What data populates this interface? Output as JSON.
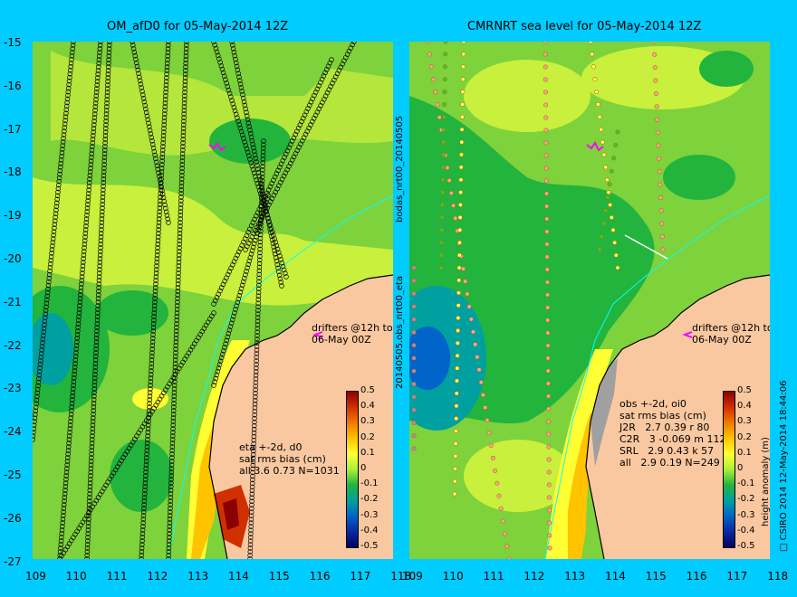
{
  "left_panel": {
    "title": "OM_afD0 for 05-May-2014 12Z",
    "drifters_label": "drifters @12h to\n06-May 00Z",
    "stats": "eta +-2d, d0\nsat rms bias (cm)\nall 3.6 0.73 N=1031",
    "side_label_top": "bodas_nrt00_20140505",
    "side_label_bottom": "20140505.obs_nrt00_eta"
  },
  "right_panel": {
    "title": "CMRNRT sea level  for 05-May-2014 12Z",
    "drifters_label": "drifters @12h to\n06-May 00Z",
    "stats": "obs +-2d, oi0\nsat rms bias (cm)\nJ2R   2.7 0.39 r 80\nC2R   3 -0.069 m 112\nSRL   2.9 0.43 k 57\nall   2.9 0.19 N=249",
    "side_label": "□ CSIRO 2014  12-May-2014 18:44:06"
  },
  "colorbar": {
    "label": "height anomaly (m)",
    "ticks": [
      "0.5",
      "0.4",
      "0.3",
      "0.2",
      "0.1",
      "0",
      "-0.1",
      "-0.2",
      "-0.3",
      "-0.4",
      "-0.5"
    ]
  },
  "axes": {
    "lat_ticks": [
      "-15",
      "-16",
      "-17",
      "-18",
      "-19",
      "-20",
      "-21",
      "-22",
      "-23",
      "-24",
      "-25",
      "-26",
      "-27"
    ],
    "left_lon_ticks": [
      "109",
      "110",
      "111",
      "112",
      "113",
      "114",
      "115",
      "116",
      "117",
      "118"
    ],
    "right_lon_ticks": [
      "109",
      "110",
      "111",
      "112",
      "113",
      "114",
      "115",
      "116",
      "117",
      "118"
    ]
  },
  "colors": {
    "background": "#00ccff",
    "land": "#fac8a0",
    "ocean_low": "#22b43c",
    "ocean_mid": "#7ed23c",
    "ocean_high": "#ffff33",
    "warm": "#ffc300",
    "hot": "#d03000",
    "drifters": "#ff00ff"
  }
}
